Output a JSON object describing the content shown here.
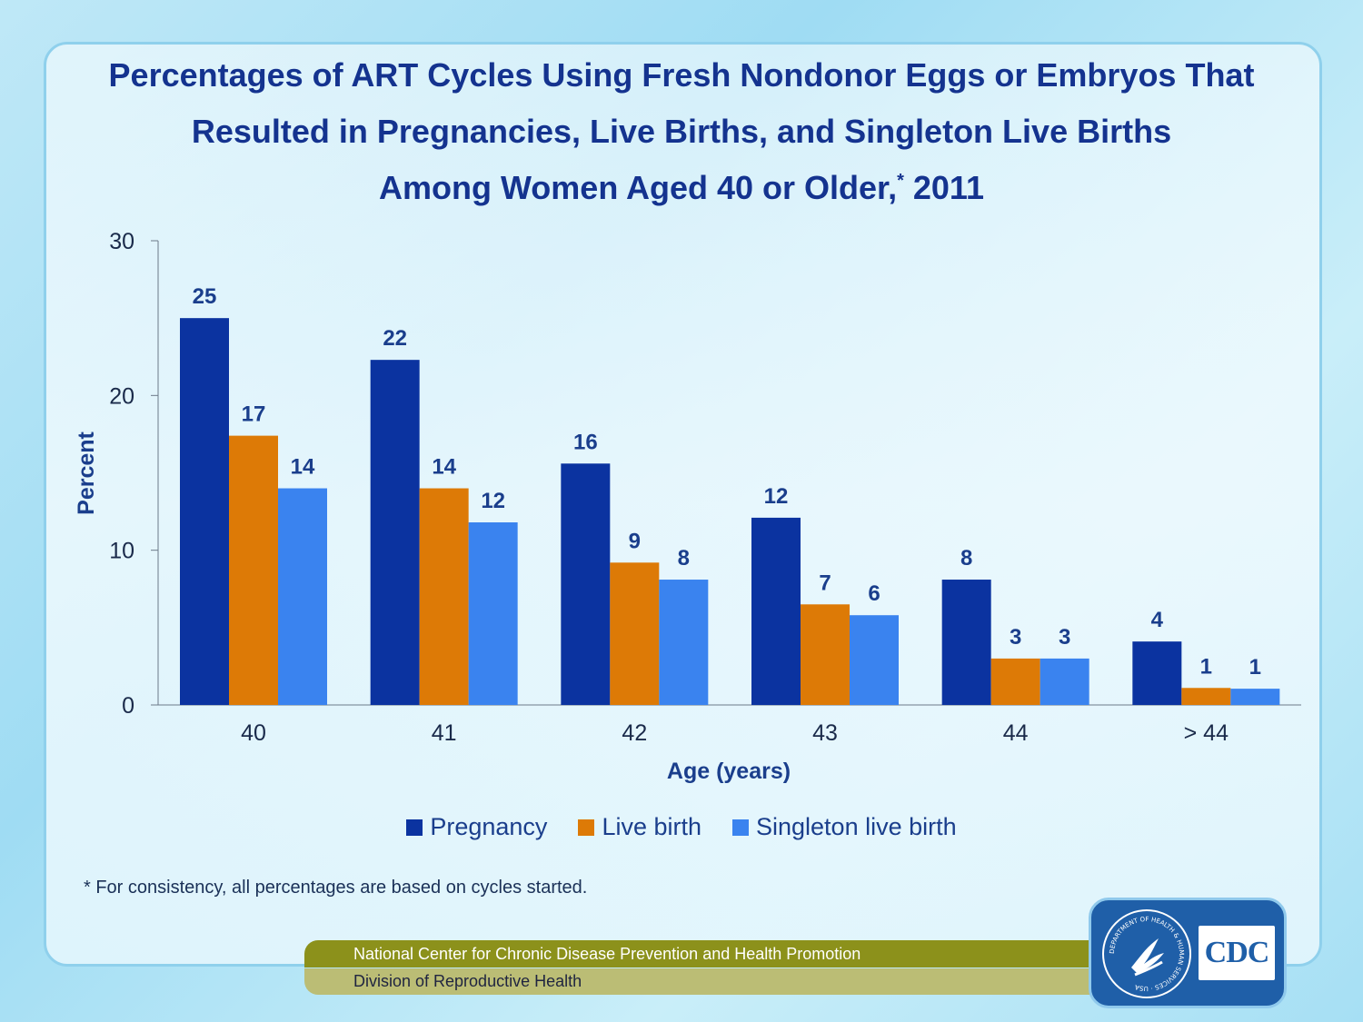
{
  "title_lines": [
    "Percentages of ART Cycles Using Fresh Nondonor Eggs or Embryos That",
    "Resulted in Pregnancies, Live Births, and Singleton Live Births",
    "Among Women Aged 40 or Older,"
  ],
  "title_sup": "*",
  "title_tail": " 2011",
  "footnote": "* For consistency, all percentages are based on cycles started.",
  "footer": {
    "line1": "National Center for Chronic Disease Prevention and Health Promotion",
    "line2": "Division of Reproductive Health",
    "logo_text": "CDC",
    "seal_text": "DEPARTMENT OF HEALTH & HUMAN SERVICES · USA"
  },
  "colors": {
    "pregnancy": "#0b33a0",
    "live_birth": "#dd7a06",
    "singleton": "#3a83ef",
    "title": "#14338f",
    "axis": "#6c7a89"
  },
  "chart_data": {
    "type": "bar",
    "categories": [
      "40",
      "41",
      "42",
      "43",
      "44",
      "> 44"
    ],
    "series": [
      {
        "name": "Pregnancy",
        "values": [
          25,
          22.3,
          15.6,
          12.1,
          8.1,
          4.1
        ],
        "labels": [
          "25",
          "22",
          "16",
          "12",
          "8",
          "4"
        ]
      },
      {
        "name": "Live birth",
        "values": [
          17.4,
          14,
          9.2,
          6.5,
          3,
          1.1
        ],
        "labels": [
          "17",
          "14",
          "9",
          "7",
          "3",
          "1"
        ]
      },
      {
        "name": "Singleton live birth",
        "values": [
          14,
          11.8,
          8.1,
          5.8,
          3,
          1.05
        ],
        "labels": [
          "14",
          "12",
          "8",
          "6",
          "3",
          "1"
        ]
      }
    ],
    "ylim": [
      0,
      30
    ],
    "yticks": [
      0,
      10,
      20,
      30
    ],
    "xlabel": "Age (years)",
    "ylabel": "Percent",
    "legend": "bottom",
    "grid": false
  }
}
